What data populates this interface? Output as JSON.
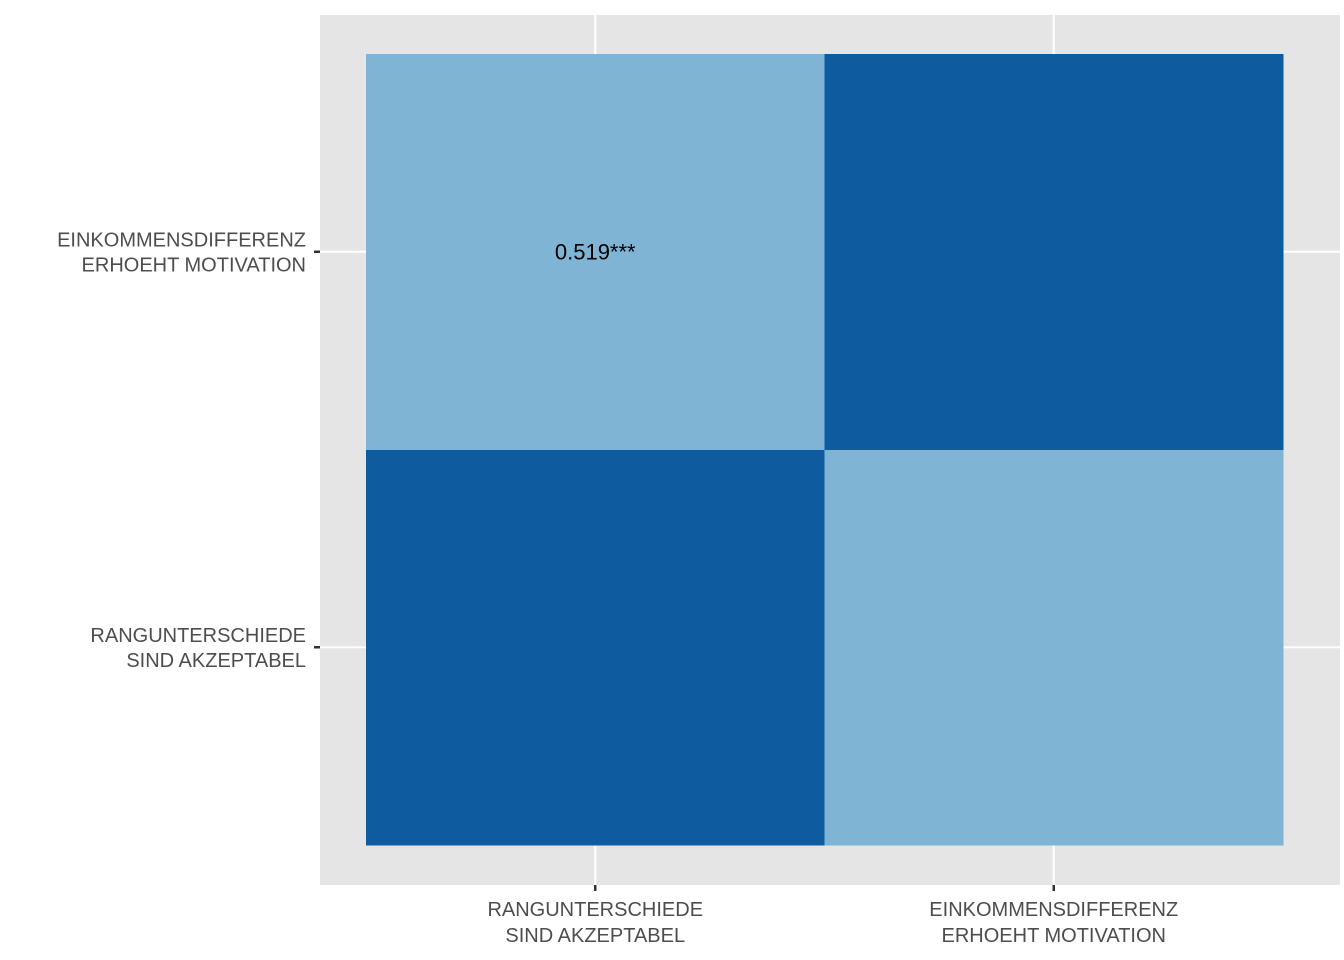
{
  "chart_data": {
    "type": "heatmap",
    "x_categories": [
      [
        "RANGUNTERSCHIEDE",
        "SIND AKZEPTABEL"
      ],
      [
        "EINKOMMENSDIFFERENZ",
        "ERHOEHT MOTIVATION"
      ]
    ],
    "y_categories": [
      [
        "RANGUNTERSCHIEDE",
        "SIND AKZEPTABEL"
      ],
      [
        "EINKOMMENSDIFFERENZ",
        "ERHOEHT MOTIVATION"
      ]
    ],
    "cells": [
      {
        "x": 0,
        "y": 0,
        "value": 1.0,
        "label": "",
        "color": "#0e5c9f"
      },
      {
        "x": 1,
        "y": 0,
        "value": 0.519,
        "label": "",
        "color": "#7fb4d5"
      },
      {
        "x": 0,
        "y": 1,
        "value": 0.519,
        "label": "0.519***",
        "color": "#7fb4d5"
      },
      {
        "x": 1,
        "y": 1,
        "value": 1.0,
        "label": "",
        "color": "#0e5c9f"
      }
    ],
    "title": "",
    "xlabel": "",
    "ylabel": "",
    "legend": "none",
    "panel_color": "#e5e5e5",
    "grid_color": "#ffffff"
  }
}
